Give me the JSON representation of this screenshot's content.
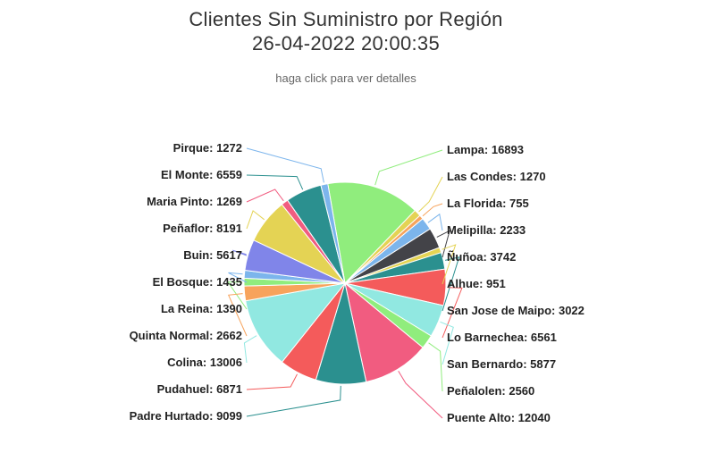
{
  "header": {
    "title_line1": "Clientes Sin Suministro por Región",
    "title_line2": "26-04-2022 20:00:35",
    "subtitle": "haga click para ver detalles"
  },
  "chart_data": {
    "type": "pie",
    "title": "Clientes Sin Suministro por Región",
    "subtitle": "haga click para ver detalles",
    "timestamp": "26-04-2022 20:00:35",
    "slices": [
      {
        "name": "Lampa",
        "value": 16893,
        "color": "#90ed7d"
      },
      {
        "name": "Las Condes",
        "value": 1270,
        "color": "#e4d354"
      },
      {
        "name": "La Florida",
        "value": 755,
        "color": "#f7a35c"
      },
      {
        "name": "Melipilla",
        "value": 2233,
        "color": "#7cb5ec"
      },
      {
        "name": "Ñuñoa",
        "value": 3742,
        "color": "#434348"
      },
      {
        "name": "Alhue",
        "value": 951,
        "color": "#e4d354"
      },
      {
        "name": "San Jose de Maipo",
        "value": 3022,
        "color": "#2b908f"
      },
      {
        "name": "Lo Barnechea",
        "value": 6561,
        "color": "#f45b5b"
      },
      {
        "name": "San Bernardo",
        "value": 5877,
        "color": "#91e8e1"
      },
      {
        "name": "Peñalolen",
        "value": 2560,
        "color": "#90ed7d"
      },
      {
        "name": "Puente Alto",
        "value": 12040,
        "color": "#f15c80"
      },
      {
        "name": "Padre Hurtado",
        "value": 9099,
        "color": "#2b908f"
      },
      {
        "name": "Pudahuel",
        "value": 6871,
        "color": "#f45b5b"
      },
      {
        "name": "Colina",
        "value": 13006,
        "color": "#91e8e1"
      },
      {
        "name": "Quinta Normal",
        "value": 2662,
        "color": "#f7a35c"
      },
      {
        "name": "La Reina",
        "value": 1390,
        "color": "#90ed7d"
      },
      {
        "name": "El Bosque",
        "value": 1435,
        "color": "#7cb5ec"
      },
      {
        "name": "Buin",
        "value": 5617,
        "color": "#8085e9"
      },
      {
        "name": "Peñaflor",
        "value": 8191,
        "color": "#e4d354"
      },
      {
        "name": "Maria Pinto",
        "value": 1269,
        "color": "#f15c80"
      },
      {
        "name": "El Monte",
        "value": 6559,
        "color": "#2b908f"
      },
      {
        "name": "Pirque",
        "value": 1272,
        "color": "#7cb5ec"
      }
    ],
    "label_format": "{name}: {value}"
  }
}
